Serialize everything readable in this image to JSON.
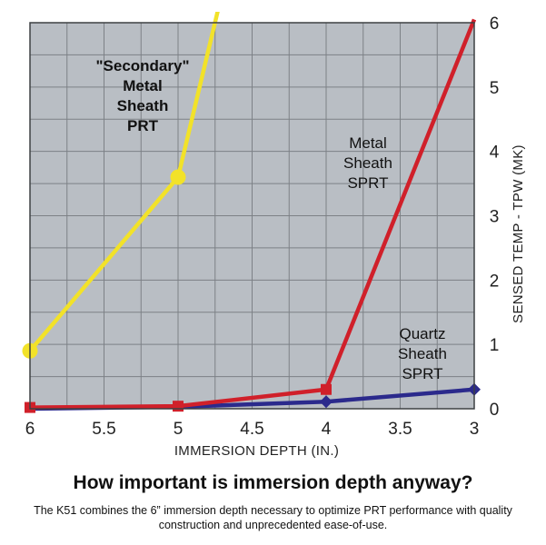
{
  "chart_data": {
    "type": "line",
    "title": "",
    "xlabel": "IMMERSION DEPTH (IN.)",
    "ylabel": "SENSED TEMP - TPW (MK)",
    "x_ticks": [
      "6",
      "5.5",
      "5",
      "4.5",
      "4",
      "3.5",
      "3"
    ],
    "x_tick_values": [
      6,
      5.5,
      5,
      4.5,
      4,
      3.5,
      3
    ],
    "y_ticks": [
      "0",
      "1",
      "2",
      "3",
      "4",
      "5",
      "6"
    ],
    "y_tick_values": [
      0,
      1,
      2,
      3,
      4,
      5,
      6
    ],
    "xlim": [
      6,
      3
    ],
    "ylim": [
      0,
      6
    ],
    "x_reversed": true,
    "y_axis_position": "right",
    "grid": true,
    "series": [
      {
        "label_lines": [
          "\"Secondary\"",
          "Metal",
          "Sheath",
          "PRT"
        ],
        "color": "#f2e229",
        "marker": "circle",
        "points": [
          [
            6,
            0.9
          ],
          [
            5,
            3.6
          ]
        ],
        "line": [
          [
            6,
            0.9
          ],
          [
            5,
            3.6
          ],
          [
            4.73,
            6.2
          ]
        ]
      },
      {
        "label_lines": [
          "Metal",
          "Sheath",
          "SPRT"
        ],
        "color": "#d0202a",
        "marker": "square",
        "points": [
          [
            6,
            0.02
          ],
          [
            5,
            0.04
          ],
          [
            4,
            0.3
          ]
        ],
        "line": [
          [
            6,
            0.02
          ],
          [
            5,
            0.04
          ],
          [
            4,
            0.3
          ],
          [
            3,
            6.05
          ]
        ]
      },
      {
        "label_lines": [
          "Quartz",
          "Sheath",
          "SPRT"
        ],
        "color": "#2b2a8c",
        "marker": "diamond",
        "points": [
          [
            4,
            0.11
          ],
          [
            3,
            0.3
          ]
        ],
        "line": [
          [
            6,
            0.0
          ],
          [
            5,
            0.03
          ],
          [
            4,
            0.11
          ],
          [
            3,
            0.3
          ]
        ]
      }
    ]
  },
  "headline": "How important is immersion depth anyway?",
  "subtext": "The K51 combines the 6” immersion depth necessary to optimize PRT performance with quality construction and unprecedented ease-of-use."
}
